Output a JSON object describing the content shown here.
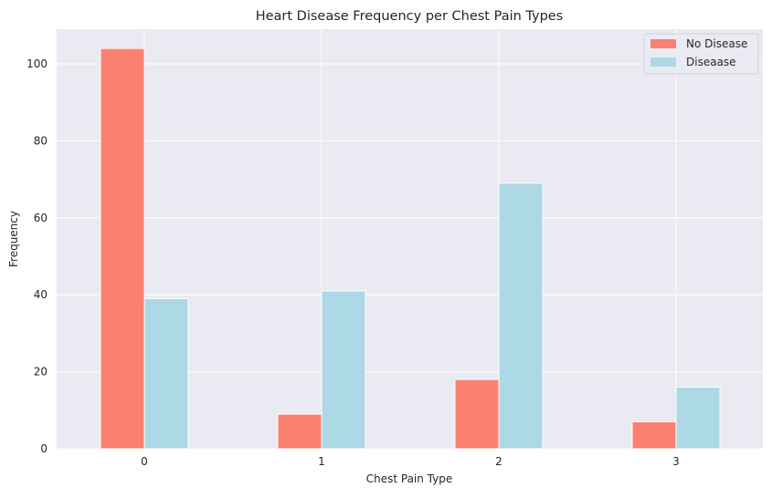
{
  "chart_data": {
    "type": "bar",
    "title": "Heart Disease Frequency per Chest Pain Types",
    "xlabel": "Chest Pain Type",
    "ylabel": "Frequency",
    "categories": [
      "0",
      "1",
      "2",
      "3"
    ],
    "series": [
      {
        "name": "No Disease",
        "color": "#fa8072",
        "values": [
          104,
          9,
          18,
          7
        ]
      },
      {
        "name": "Diseaase",
        "color": "#add8e6",
        "values": [
          39,
          41,
          69,
          16
        ]
      }
    ],
    "ylim": [
      0,
      109
    ],
    "yticks": [
      0,
      20,
      40,
      60,
      80,
      100
    ],
    "grid": true,
    "legend_position": "top-right",
    "background": "#eaeaf2"
  }
}
